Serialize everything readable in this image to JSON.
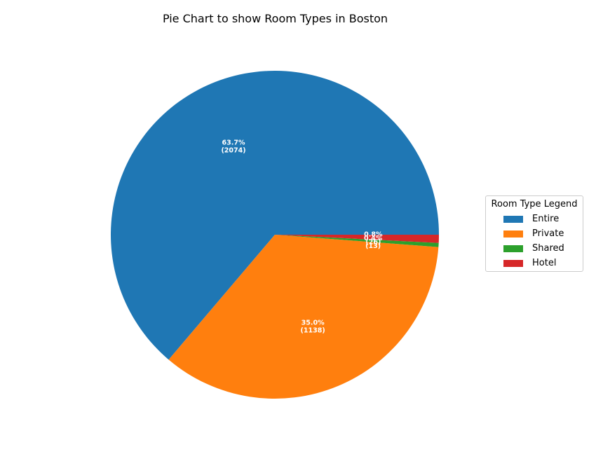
{
  "chart_data": {
    "type": "pie",
    "title": "Pie Chart to show Room Types in Boston",
    "legend_title": "Room Type Legend",
    "legend_position": "right",
    "categories": [
      "Entire",
      "Private",
      "Shared",
      "Hotel"
    ],
    "values": [
      2074,
      1138,
      13,
      26
    ],
    "labels": [
      {
        "pct": "63.7%",
        "count": "(2074)"
      },
      {
        "pct": "35.0%",
        "count": "(1138)"
      },
      {
        "pct": "0.4%",
        "count": "(13)"
      },
      {
        "pct": "0.8%",
        "count": "(26)"
      }
    ],
    "colors": [
      "#1f77b4",
      "#ff7f0e",
      "#2ca02c",
      "#d62728"
    ]
  }
}
